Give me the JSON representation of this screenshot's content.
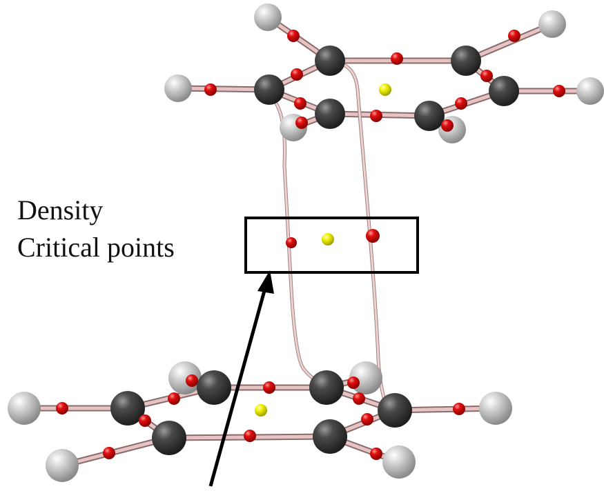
{
  "label": {
    "lines": [
      "Density",
      "Critical points"
    ]
  }
}
